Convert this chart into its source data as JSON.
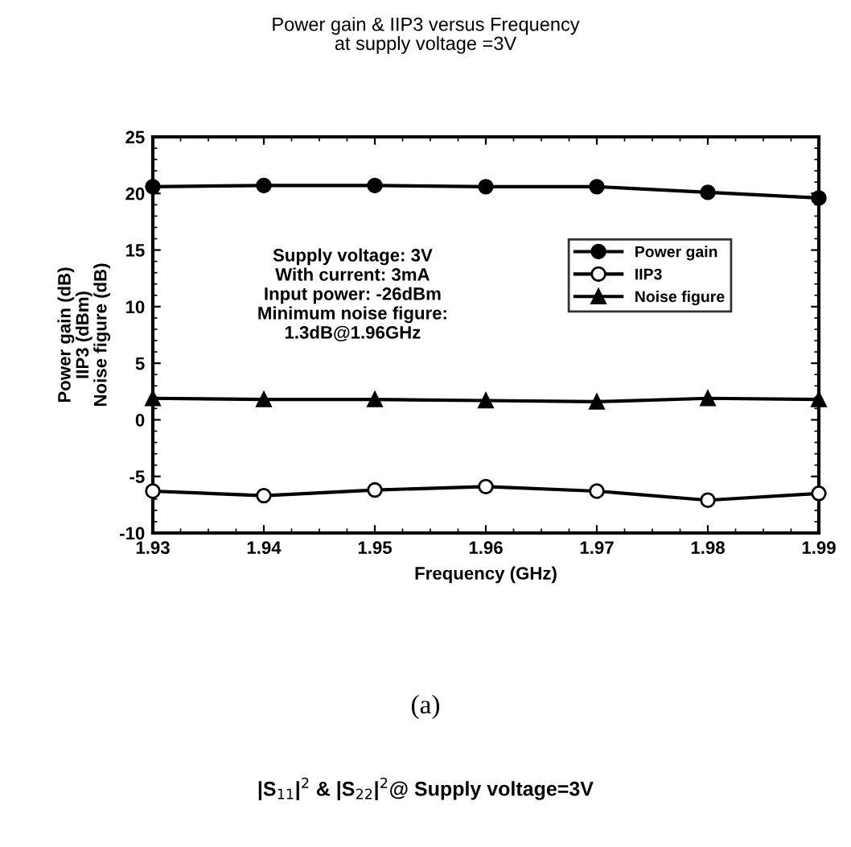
{
  "chart_data": {
    "type": "line",
    "title": "Power gain & IIP3 versus Frequency\nat supply voltage =3V",
    "xlabel": "Frequency (GHz)",
    "ylabel": "Power gain (dB)\nIIP3 (dBm)\nNoise figure (dB)",
    "x": [
      1.93,
      1.94,
      1.95,
      1.96,
      1.97,
      1.98,
      1.99
    ],
    "series": [
      {
        "name": "Power gain",
        "color": "#000000",
        "marker": "circle",
        "values": [
          20.6,
          20.7,
          20.7,
          20.6,
          20.6,
          20.1,
          19.6
        ]
      },
      {
        "name": "IIP3",
        "color": "#000000",
        "marker": "open circle",
        "values": [
          -6.3,
          -6.7,
          -6.2,
          -5.9,
          -6.3,
          -7.1,
          -6.5
        ]
      },
      {
        "name": "Noise figure",
        "color": "#000000",
        "marker": "triangle",
        "values": [
          1.9,
          1.8,
          1.8,
          1.7,
          1.6,
          1.9,
          1.8
        ]
      }
    ],
    "xlim": [
      1.93,
      1.99
    ],
    "xticks": [
      1.93,
      1.94,
      1.95,
      1.96,
      1.97,
      1.98,
      1.99
    ],
    "ylim": [
      -10,
      25
    ],
    "yticks": [
      -10,
      -5,
      0,
      5,
      10,
      15,
      20,
      25
    ],
    "legend": "right",
    "grid": false,
    "line_style": "solid",
    "annotations": [
      "Supply voltage: 3V\nWith current: 3mA\nInput power: -26dBm\nMinimum noise figure:\n1.3dB@1.96GHz",
      "(a)",
      "|S$_{11}$|$^{2}$ & |S$_{22}$|$^{2}$@ Supply voltage=3V"
    ]
  }
}
